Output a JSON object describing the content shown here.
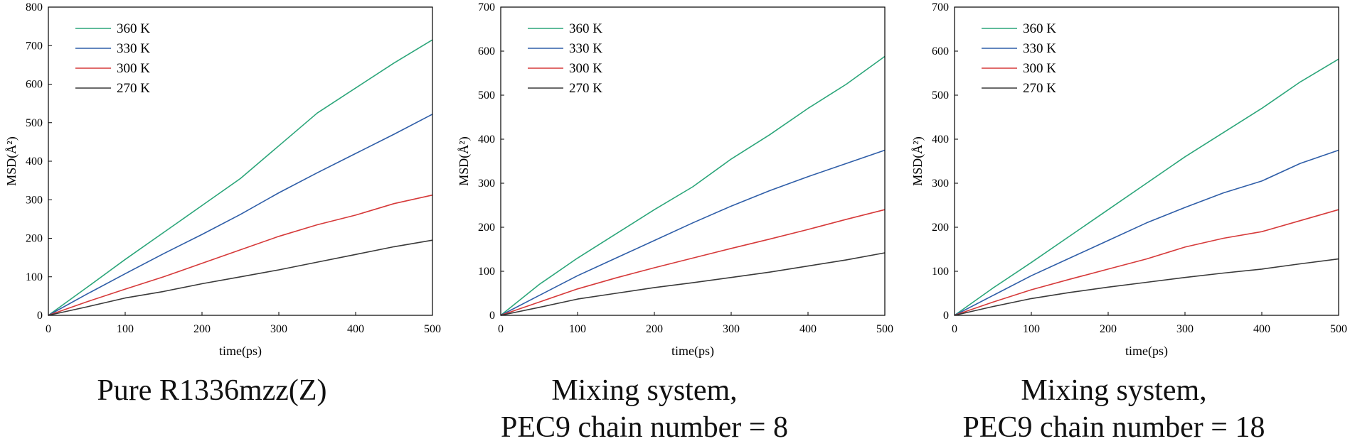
{
  "chart_data": [
    {
      "type": "line",
      "title": "Pure R1336mzz(Z)",
      "xlabel": "time(ps)",
      "ylabel": "MSD(Å²)",
      "xlim": [
        0,
        500
      ],
      "ylim": [
        0,
        800
      ],
      "xticks": [
        0,
        100,
        200,
        300,
        400,
        500
      ],
      "yticks": [
        0,
        100,
        200,
        300,
        400,
        500,
        600,
        700,
        800
      ],
      "grid": false,
      "legend_position": "top-left",
      "series": [
        {
          "name": "360 K",
          "color": "#2ca67a",
          "x": [
            0,
            50,
            100,
            150,
            200,
            250,
            300,
            350,
            400,
            450,
            500
          ],
          "y": [
            0,
            72,
            145,
            215,
            285,
            355,
            440,
            525,
            590,
            655,
            715
          ]
        },
        {
          "name": "330 K",
          "color": "#2f5ea8",
          "x": [
            0,
            50,
            100,
            150,
            200,
            250,
            300,
            350,
            400,
            450,
            500
          ],
          "y": [
            0,
            55,
            108,
            160,
            210,
            262,
            318,
            370,
            420,
            470,
            522
          ]
        },
        {
          "name": "300 K",
          "color": "#d63a3a",
          "x": [
            0,
            50,
            100,
            150,
            200,
            250,
            300,
            350,
            400,
            450,
            500
          ],
          "y": [
            0,
            35,
            68,
            100,
            135,
            170,
            205,
            235,
            260,
            290,
            312
          ]
        },
        {
          "name": "270 K",
          "color": "#3a3a3a",
          "x": [
            0,
            50,
            100,
            150,
            200,
            250,
            300,
            350,
            400,
            450,
            500
          ],
          "y": [
            0,
            22,
            45,
            62,
            82,
            100,
            118,
            138,
            158,
            178,
            195
          ]
        }
      ]
    },
    {
      "type": "line",
      "title": [
        "Mixing system,",
        "PEC9 chain number = 8"
      ],
      "xlabel": "time(ps)",
      "ylabel": "MSD(Å²)",
      "xlim": [
        0,
        500
      ],
      "ylim": [
        0,
        700
      ],
      "xticks": [
        0,
        100,
        200,
        300,
        400,
        500
      ],
      "yticks": [
        0,
        100,
        200,
        300,
        400,
        500,
        600,
        700
      ],
      "grid": false,
      "legend_position": "top-left",
      "series": [
        {
          "name": "360 K",
          "color": "#2ca67a",
          "x": [
            0,
            50,
            100,
            150,
            200,
            250,
            300,
            350,
            400,
            450,
            500
          ],
          "y": [
            0,
            70,
            130,
            185,
            240,
            292,
            355,
            410,
            470,
            525,
            588
          ]
        },
        {
          "name": "330 K",
          "color": "#2f5ea8",
          "x": [
            0,
            50,
            100,
            150,
            200,
            250,
            300,
            350,
            400,
            450,
            500
          ],
          "y": [
            0,
            45,
            90,
            130,
            170,
            210,
            248,
            283,
            315,
            345,
            375
          ]
        },
        {
          "name": "300 K",
          "color": "#d63a3a",
          "x": [
            0,
            50,
            100,
            150,
            200,
            250,
            300,
            350,
            400,
            450,
            500
          ],
          "y": [
            0,
            30,
            60,
            85,
            108,
            130,
            152,
            173,
            195,
            218,
            240
          ]
        },
        {
          "name": "270 K",
          "color": "#3a3a3a",
          "x": [
            0,
            50,
            100,
            150,
            200,
            250,
            300,
            350,
            400,
            450,
            500
          ],
          "y": [
            0,
            18,
            37,
            50,
            63,
            74,
            86,
            98,
            112,
            126,
            142
          ]
        }
      ]
    },
    {
      "type": "line",
      "title": [
        "Mixing system,",
        "PEC9 chain number = 18"
      ],
      "xlabel": "time(ps)",
      "ylabel": "MSD(Å²)",
      "xlim": [
        0,
        500
      ],
      "ylim": [
        0,
        700
      ],
      "xticks": [
        0,
        100,
        200,
        300,
        400,
        500
      ],
      "yticks": [
        0,
        100,
        200,
        300,
        400,
        500,
        600,
        700
      ],
      "grid": false,
      "legend_position": "top-left",
      "series": [
        {
          "name": "360 K",
          "color": "#2ca67a",
          "x": [
            0,
            50,
            100,
            150,
            200,
            250,
            300,
            350,
            400,
            450,
            500
          ],
          "y": [
            0,
            62,
            120,
            180,
            240,
            300,
            360,
            415,
            470,
            530,
            582
          ]
        },
        {
          "name": "330 K",
          "color": "#2f5ea8",
          "x": [
            0,
            50,
            100,
            150,
            200,
            250,
            300,
            350,
            400,
            450,
            500
          ],
          "y": [
            0,
            45,
            90,
            130,
            170,
            210,
            245,
            278,
            305,
            345,
            375
          ]
        },
        {
          "name": "300 K",
          "color": "#d63a3a",
          "x": [
            0,
            50,
            100,
            150,
            200,
            250,
            300,
            350,
            400,
            450,
            500
          ],
          "y": [
            0,
            30,
            58,
            82,
            105,
            128,
            155,
            175,
            190,
            215,
            240
          ]
        },
        {
          "name": "270 K",
          "color": "#3a3a3a",
          "x": [
            0,
            50,
            100,
            150,
            200,
            250,
            300,
            350,
            400,
            450,
            500
          ],
          "y": [
            0,
            20,
            38,
            52,
            64,
            75,
            86,
            96,
            105,
            117,
            128
          ]
        }
      ]
    }
  ]
}
